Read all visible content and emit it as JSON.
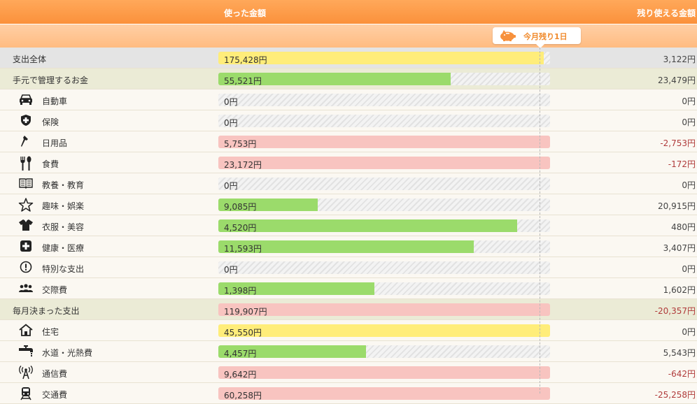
{
  "header": {
    "used_label": "使った金額",
    "remaining_label": "残り使える金額"
  },
  "today_marker": {
    "label": "今月残り1日",
    "icon": "piggy-bank-icon"
  },
  "colors": {
    "yellow": "#ffed7a",
    "green": "#9bdb6b",
    "red": "#f8c4c0",
    "negative_text": "#b03b3b"
  },
  "rows": [
    {
      "type": "total",
      "name": "支出全体",
      "used": "175,428円",
      "remaining": "3,122円",
      "fill": 0.98,
      "color": "yellow",
      "negative": false
    },
    {
      "type": "group",
      "name": "手元で管理するお金",
      "used": "55,521円",
      "remaining": "23,479円",
      "fill": 0.7,
      "color": "green",
      "negative": false
    },
    {
      "type": "cat",
      "icon": "car-icon",
      "name": "自動車",
      "used": "0円",
      "remaining": "0円",
      "fill": 0,
      "color": "green",
      "negative": false
    },
    {
      "type": "cat",
      "icon": "shield-icon",
      "name": "保険",
      "used": "0円",
      "remaining": "0円",
      "fill": 0,
      "color": "green",
      "negative": false
    },
    {
      "type": "cat",
      "icon": "daily-goods-icon",
      "name": "日用品",
      "used": "5,753円",
      "remaining": "-2,753円",
      "fill": 1,
      "color": "red",
      "negative": true
    },
    {
      "type": "cat",
      "icon": "fork-spoon-icon",
      "name": "食費",
      "used": "23,172円",
      "remaining": "-172円",
      "fill": 1,
      "color": "red",
      "negative": true
    },
    {
      "type": "cat",
      "icon": "book-icon",
      "name": "教養・教育",
      "used": "0円",
      "remaining": "0円",
      "fill": 0,
      "color": "green",
      "negative": false
    },
    {
      "type": "cat",
      "icon": "star-icon",
      "name": "趣味・娯楽",
      "used": "9,085円",
      "remaining": "20,915円",
      "fill": 0.3,
      "color": "green",
      "negative": false
    },
    {
      "type": "cat",
      "icon": "shirt-icon",
      "name": "衣服・美容",
      "used": "4,520円",
      "remaining": "480円",
      "fill": 0.9,
      "color": "green",
      "negative": false
    },
    {
      "type": "cat",
      "icon": "medical-cross-icon",
      "name": "健康・医療",
      "used": "11,593円",
      "remaining": "3,407円",
      "fill": 0.77,
      "color": "green",
      "negative": false
    },
    {
      "type": "cat",
      "icon": "exclamation-icon",
      "name": "特別な支出",
      "used": "0円",
      "remaining": "0円",
      "fill": 0,
      "color": "green",
      "negative": false
    },
    {
      "type": "cat",
      "icon": "people-icon",
      "name": "交際費",
      "used": "1,398円",
      "remaining": "1,602円",
      "fill": 0.47,
      "color": "green",
      "negative": false
    },
    {
      "type": "group",
      "name": "毎月決まった支出",
      "used": "119,907円",
      "remaining": "-20,357円",
      "fill": 1,
      "color": "red",
      "negative": true
    },
    {
      "type": "cat",
      "icon": "house-icon",
      "name": "住宅",
      "used": "45,550円",
      "remaining": "0円",
      "fill": 1,
      "color": "yellow",
      "negative": false
    },
    {
      "type": "cat",
      "icon": "faucet-icon",
      "name": "水道・光熱費",
      "used": "4,457円",
      "remaining": "5,543円",
      "fill": 0.445,
      "color": "green",
      "negative": false
    },
    {
      "type": "cat",
      "icon": "antenna-icon",
      "name": "通信費",
      "used": "9,642円",
      "remaining": "-642円",
      "fill": 1,
      "color": "red",
      "negative": true
    },
    {
      "type": "cat",
      "icon": "train-icon",
      "name": "交通費",
      "used": "60,258円",
      "remaining": "-25,258円",
      "fill": 1,
      "color": "red",
      "negative": true
    }
  ]
}
